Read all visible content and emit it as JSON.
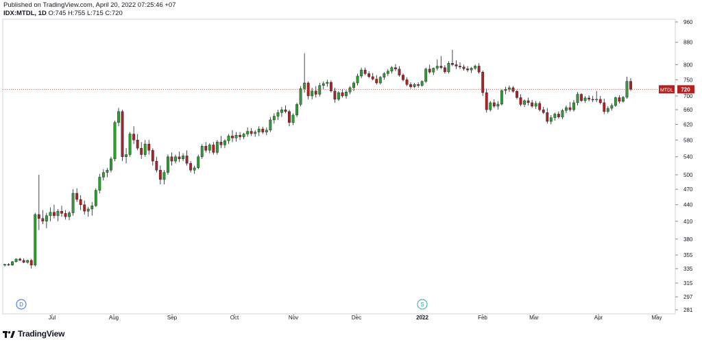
{
  "header": {
    "published": "Published on TradingView.com, April 20, 2022 07:25:46 +07",
    "symbol": "IDX:MTDL, 1D",
    "ohlc": "O:745 H:755 L:715 C:720"
  },
  "footer": {
    "brand": "TradingView",
    "logo_icon": "tradingview-logo-icon"
  },
  "colors": {
    "up": "#26a69a",
    "up_body": "#2e9e2e",
    "down": "#b22222",
    "wick": "#131722",
    "price_line": "#cc3333",
    "grid": "#e6e6e6",
    "axis_text": "#131722"
  },
  "chart_data": {
    "type": "candlestick",
    "symbol": "MTDL",
    "interval": "1D",
    "last_price": 720,
    "price_scale": "log",
    "price_ticks": [
      281,
      297,
      315,
      335,
      355,
      380,
      410,
      440,
      470,
      500,
      540,
      580,
      620,
      660,
      700,
      750,
      800,
      880,
      960
    ],
    "x_ticks": [
      "Jul",
      "Aug",
      "Sep",
      "Oct",
      "Nov",
      "Dec",
      "2022",
      "Feb",
      "Mar",
      "Apr",
      "May"
    ],
    "markers": [
      {
        "label": "D",
        "color": "#2962ff",
        "after_month": "Jun"
      },
      {
        "label": "S",
        "color": "#26a69a",
        "after_month": "2022"
      }
    ],
    "candles": [
      [
        340,
        342,
        338,
        341
      ],
      [
        341,
        343,
        339,
        340
      ],
      [
        340,
        346,
        339,
        345
      ],
      [
        345,
        350,
        344,
        349
      ],
      [
        349,
        351,
        346,
        347
      ],
      [
        347,
        350,
        343,
        344
      ],
      [
        344,
        348,
        342,
        347
      ],
      [
        347,
        349,
        335,
        340
      ],
      [
        340,
        425,
        338,
        422
      ],
      [
        422,
        500,
        395,
        415
      ],
      [
        415,
        430,
        405,
        410
      ],
      [
        410,
        425,
        398,
        420
      ],
      [
        420,
        435,
        410,
        426
      ],
      [
        426,
        440,
        415,
        420
      ],
      [
        420,
        432,
        410,
        428
      ],
      [
        428,
        438,
        418,
        424
      ],
      [
        424,
        430,
        413,
        418
      ],
      [
        418,
        428,
        412,
        425
      ],
      [
        425,
        470,
        420,
        462
      ],
      [
        462,
        472,
        445,
        450
      ],
      [
        450,
        458,
        430,
        440
      ],
      [
        440,
        448,
        422,
        428
      ],
      [
        428,
        436,
        418,
        432
      ],
      [
        432,
        445,
        420,
        438
      ],
      [
        438,
        472,
        436,
        468
      ],
      [
        468,
        502,
        462,
        495
      ],
      [
        495,
        512,
        488,
        505
      ],
      [
        505,
        515,
        495,
        510
      ],
      [
        510,
        540,
        505,
        535
      ],
      [
        535,
        630,
        530,
        625
      ],
      [
        625,
        665,
        615,
        655
      ],
      [
        655,
        660,
        530,
        540
      ],
      [
        540,
        560,
        525,
        545
      ],
      [
        545,
        600,
        540,
        595
      ],
      [
        595,
        615,
        570,
        580
      ],
      [
        580,
        595,
        555,
        560
      ],
      [
        560,
        575,
        535,
        545
      ],
      [
        545,
        580,
        540,
        570
      ],
      [
        570,
        580,
        545,
        555
      ],
      [
        555,
        560,
        520,
        530
      ],
      [
        530,
        540,
        505,
        510
      ],
      [
        510,
        520,
        480,
        490
      ],
      [
        490,
        510,
        480,
        505
      ],
      [
        505,
        545,
        500,
        540
      ],
      [
        540,
        550,
        520,
        530
      ],
      [
        530,
        545,
        525,
        540
      ],
      [
        540,
        552,
        528,
        535
      ],
      [
        535,
        548,
        530,
        542
      ],
      [
        542,
        555,
        520,
        525
      ],
      [
        525,
        530,
        505,
        510
      ],
      [
        510,
        520,
        502,
        515
      ],
      [
        515,
        545,
        512,
        540
      ],
      [
        540,
        570,
        535,
        565
      ],
      [
        565,
        575,
        550,
        555
      ],
      [
        555,
        572,
        548,
        568
      ],
      [
        568,
        575,
        545,
        550
      ],
      [
        550,
        580,
        545,
        575
      ],
      [
        575,
        590,
        560,
        568
      ],
      [
        568,
        582,
        560,
        578
      ],
      [
        578,
        595,
        570,
        590
      ],
      [
        590,
        605,
        575,
        585
      ],
      [
        585,
        600,
        576,
        592
      ],
      [
        592,
        600,
        580,
        588
      ],
      [
        588,
        598,
        582,
        595
      ],
      [
        595,
        612,
        588,
        602
      ],
      [
        602,
        610,
        590,
        596
      ],
      [
        596,
        605,
        588,
        600
      ],
      [
        600,
        615,
        590,
        608
      ],
      [
        608,
        614,
        595,
        600
      ],
      [
        600,
        612,
        592,
        605
      ],
      [
        605,
        640,
        600,
        632
      ],
      [
        632,
        650,
        622,
        642
      ],
      [
        642,
        660,
        632,
        652
      ],
      [
        652,
        668,
        640,
        660
      ],
      [
        660,
        672,
        650,
        655
      ],
      [
        655,
        660,
        615,
        625
      ],
      [
        625,
        650,
        618,
        645
      ],
      [
        645,
        680,
        640,
        675
      ],
      [
        675,
        730,
        670,
        722
      ],
      [
        722,
        840,
        710,
        740
      ],
      [
        740,
        745,
        690,
        700
      ],
      [
        700,
        725,
        690,
        715
      ],
      [
        715,
        730,
        695,
        705
      ],
      [
        705,
        740,
        698,
        732
      ],
      [
        732,
        745,
        720,
        738
      ],
      [
        738,
        750,
        728,
        742
      ],
      [
        742,
        748,
        710,
        715
      ],
      [
        715,
        725,
        680,
        690
      ],
      [
        690,
        715,
        685,
        710
      ],
      [
        710,
        720,
        695,
        700
      ],
      [
        700,
        718,
        692,
        712
      ],
      [
        712,
        730,
        705,
        725
      ],
      [
        725,
        745,
        715,
        740
      ],
      [
        740,
        770,
        732,
        762
      ],
      [
        762,
        790,
        755,
        782
      ],
      [
        782,
        790,
        765,
        770
      ],
      [
        770,
        778,
        755,
        760
      ],
      [
        760,
        772,
        748,
        752
      ],
      [
        752,
        765,
        735,
        740
      ],
      [
        740,
        762,
        735,
        758
      ],
      [
        758,
        775,
        750,
        770
      ],
      [
        770,
        785,
        762,
        778
      ],
      [
        778,
        795,
        770,
        790
      ],
      [
        790,
        802,
        778,
        785
      ],
      [
        785,
        795,
        760,
        765
      ],
      [
        765,
        770,
        745,
        750
      ],
      [
        750,
        758,
        730,
        735
      ],
      [
        735,
        742,
        722,
        728
      ],
      [
        728,
        740,
        724,
        735
      ],
      [
        735,
        742,
        725,
        732
      ],
      [
        732,
        748,
        728,
        745
      ],
      [
        745,
        790,
        740,
        785
      ],
      [
        785,
        800,
        770,
        775
      ],
      [
        775,
        790,
        765,
        788
      ],
      [
        788,
        818,
        780,
        795
      ],
      [
        795,
        830,
        785,
        790
      ],
      [
        790,
        798,
        770,
        776
      ],
      [
        776,
        812,
        770,
        805
      ],
      [
        805,
        852,
        795,
        800
      ],
      [
        800,
        815,
        785,
        795
      ],
      [
        795,
        808,
        785,
        792
      ],
      [
        792,
        800,
        780,
        786
      ],
      [
        786,
        795,
        775,
        782
      ],
      [
        782,
        792,
        772,
        788
      ],
      [
        788,
        800,
        782,
        795
      ],
      [
        795,
        805,
        770,
        775
      ],
      [
        775,
        780,
        700,
        710
      ],
      [
        710,
        722,
        652,
        660
      ],
      [
        660,
        685,
        655,
        680
      ],
      [
        680,
        690,
        665,
        670
      ],
      [
        670,
        685,
        660,
        676
      ],
      [
        676,
        720,
        672,
        716
      ],
      [
        716,
        728,
        705,
        720
      ],
      [
        720,
        732,
        712,
        725
      ],
      [
        725,
        730,
        710,
        714
      ],
      [
        714,
        718,
        690,
        695
      ],
      [
        695,
        705,
        670,
        675
      ],
      [
        675,
        690,
        668,
        686
      ],
      [
        686,
        695,
        672,
        680
      ],
      [
        680,
        688,
        665,
        670
      ],
      [
        670,
        685,
        662,
        678
      ],
      [
        678,
        684,
        655,
        660
      ],
      [
        660,
        668,
        648,
        652
      ],
      [
        652,
        665,
        622,
        628
      ],
      [
        628,
        645,
        620,
        638
      ],
      [
        638,
        652,
        630,
        648
      ],
      [
        648,
        655,
        635,
        640
      ],
      [
        640,
        662,
        634,
        658
      ],
      [
        658,
        672,
        650,
        666
      ],
      [
        666,
        682,
        655,
        660
      ],
      [
        660,
        688,
        655,
        680
      ],
      [
        680,
        712,
        672,
        705
      ],
      [
        705,
        708,
        682,
        686
      ],
      [
        686,
        700,
        680,
        694
      ],
      [
        694,
        702,
        684,
        690
      ],
      [
        690,
        700,
        682,
        688
      ],
      [
        688,
        715,
        682,
        690
      ],
      [
        690,
        700,
        675,
        680
      ],
      [
        680,
        692,
        648,
        655
      ],
      [
        655,
        670,
        650,
        664
      ],
      [
        664,
        678,
        658,
        672
      ],
      [
        672,
        698,
        668,
        695
      ],
      [
        695,
        702,
        678,
        684
      ],
      [
        684,
        700,
        680,
        696
      ],
      [
        696,
        760,
        692,
        745
      ],
      [
        745,
        755,
        715,
        720
      ]
    ]
  }
}
